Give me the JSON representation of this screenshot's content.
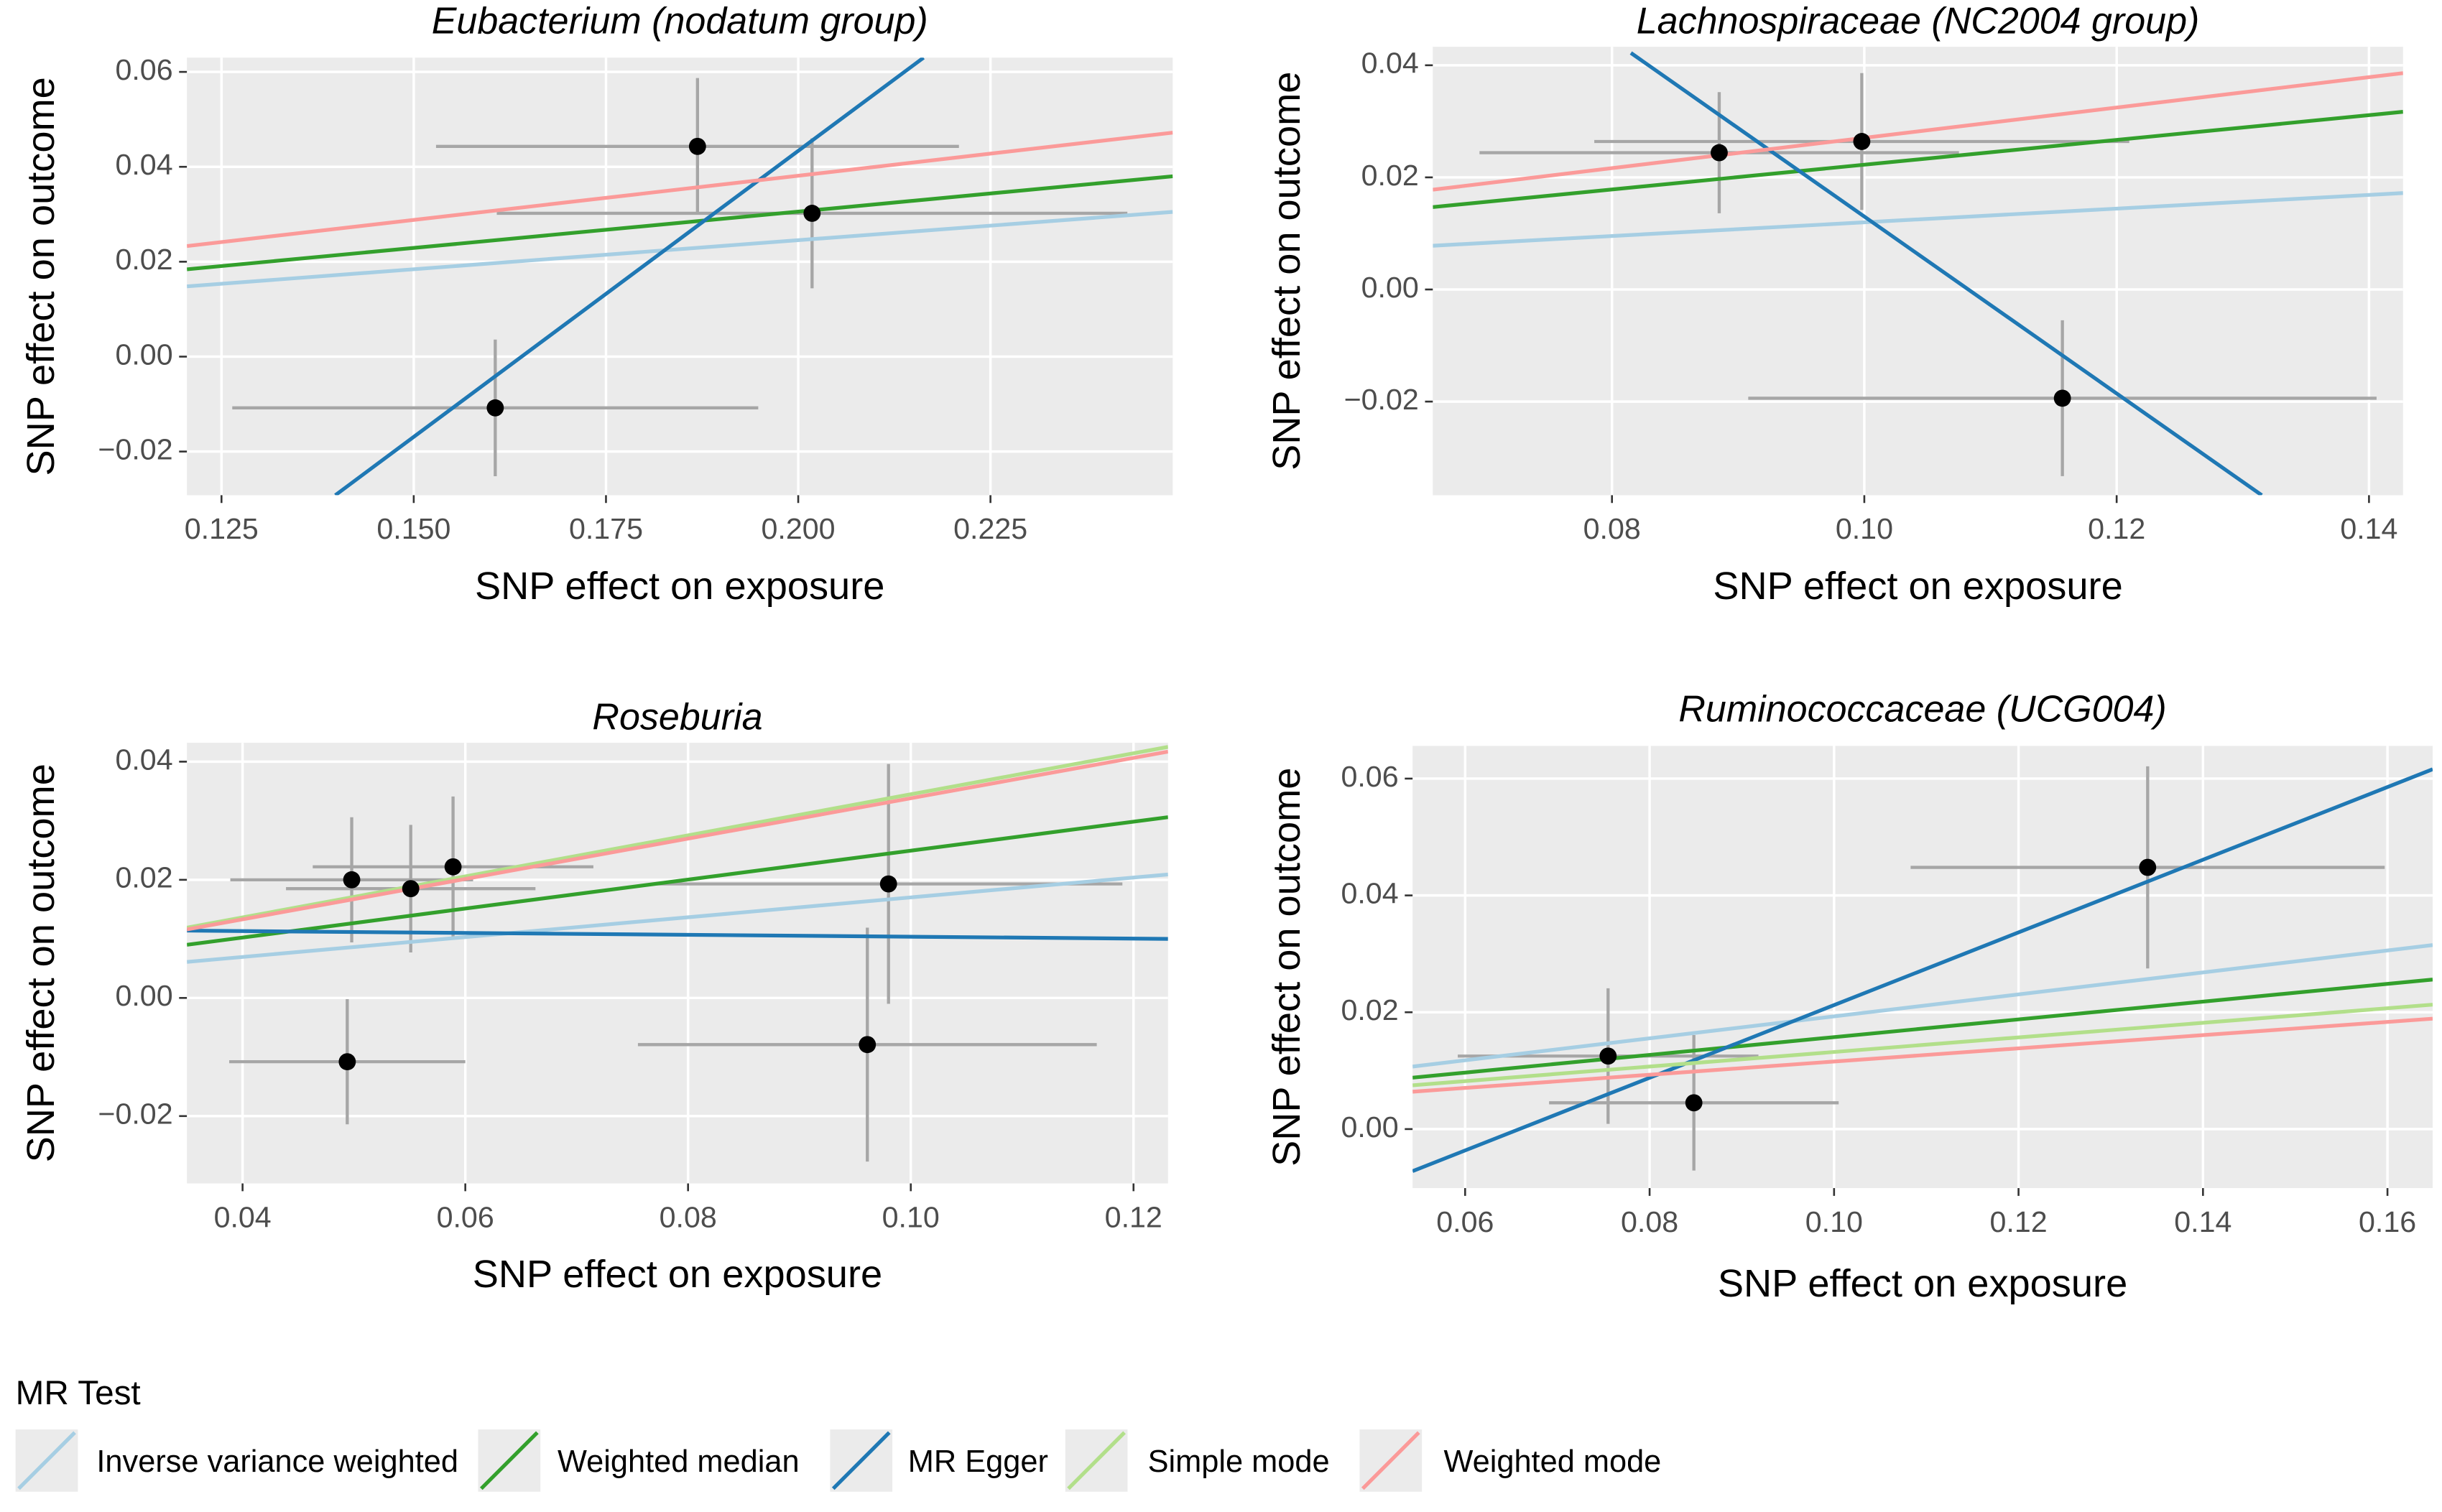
{
  "chart_data": [
    {
      "type": "scatter",
      "title": "Eubacterium (nodatum group)",
      "x_label": "SNP effect on exposure",
      "y_label": "SNP effect on outcome",
      "xlim": [
        0.1205,
        0.2487
      ],
      "ylim": [
        -0.0292,
        0.063
      ],
      "xticks": [
        0.125,
        {
          "value": 0.15,
          "label": "0.150"
        },
        0.175,
        {
          "value": 0.2,
          "label": "0.200"
        },
        0.225
      ],
      "yticks": [
        {
          "value": -0.02,
          "label": "−0.02"
        },
        {
          "value": 0,
          "label": "0.00"
        },
        0.02,
        0.04,
        0.06
      ],
      "points": {
        "x": [
          0.1606,
          0.1869,
          0.2018
        ],
        "y": [
          -0.0108,
          0.0443,
          0.0302
        ],
        "x_err": [
          0.0342,
          0.034,
          0.041
        ],
        "y_err": [
          0.0144,
          0.0144,
          0.0158
        ]
      },
      "lines": [
        {
          "name": "Inverse variance weighted",
          "color": "#a6cee3",
          "x": [
            0.1205,
            0.2487
          ],
          "values": [
            0.0148,
            0.0305
          ]
        },
        {
          "name": "Weighted median",
          "color": "#33a02c",
          "x": [
            0.1205,
            0.2487
          ],
          "values": [
            0.0184,
            0.038
          ]
        },
        {
          "name": "MR Egger",
          "color": "#1f78b4",
          "x": [
            0.1398,
            0.2163
          ],
          "values": [
            -0.0292,
            0.063
          ]
        },
        {
          "name": "Weighted mode",
          "color": "#fb9a99",
          "x": [
            0.1205,
            0.2487
          ],
          "values": [
            0.0233,
            0.0472
          ]
        }
      ]
    },
    {
      "type": "scatter",
      "title": "Lachnospiraceae (NC2004 group)",
      "x_label": "SNP effect on exposure",
      "y_label": "SNP effect on outcome",
      "xlim": [
        0.0658,
        0.1427
      ],
      "ylim": [
        -0.0367,
        0.0433
      ],
      "xticks": [
        0.08,
        {
          "value": 0.1,
          "label": "0.10"
        },
        0.12,
        0.14
      ],
      "yticks": [
        {
          "value": -0.02,
          "label": "−0.02"
        },
        {
          "value": 0,
          "label": "0.00"
        },
        0.02,
        0.04
      ],
      "points": {
        "x": [
          0.0885,
          0.0998,
          0.1157
        ],
        "y": [
          0.0244,
          0.0264,
          -0.0194
        ],
        "x_err": [
          0.019,
          0.0212,
          0.0249
        ],
        "y_err": [
          0.0108,
          0.0122,
          0.0139
        ]
      },
      "lines": [
        {
          "name": "Inverse variance weighted",
          "color": "#a6cee3",
          "x": [
            0.0658,
            0.1427
          ],
          "values": [
            0.0078,
            0.0172
          ]
        },
        {
          "name": "Weighted median",
          "color": "#33a02c",
          "x": [
            0.0658,
            0.1427
          ],
          "values": [
            0.0147,
            0.0317
          ]
        },
        {
          "name": "MR Egger",
          "color": "#1f78b4",
          "x": [
            0.0815,
            0.1315
          ],
          "values": [
            0.0422,
            -0.0367
          ]
        },
        {
          "name": "Weighted mode",
          "color": "#fb9a99",
          "x": [
            0.0658,
            0.1427
          ],
          "values": [
            0.0178,
            0.0386
          ]
        }
      ]
    },
    {
      "type": "scatter",
      "title": "Roseburia",
      "x_label": "SNP effect on exposure",
      "y_label": "SNP effect on outcome",
      "xlim": [
        0.035,
        0.1231
      ],
      "ylim": [
        -0.0314,
        0.0432
      ],
      "xticks": [
        0.04,
        0.06,
        0.08,
        {
          "value": 0.1,
          "label": "0.10"
        },
        0.12
      ],
      "yticks": [
        {
          "value": -0.02,
          "label": "−0.02"
        },
        {
          "value": 0,
          "label": "0.00"
        },
        0.02,
        0.04
      ],
      "points": {
        "x": [
          0.0498,
          0.0551,
          0.0589,
          0.0494,
          0.098,
          0.0961
        ],
        "y": [
          0.02,
          0.0185,
          0.0222,
          -0.0108,
          0.0193,
          -0.0079
        ],
        "x_err": [
          0.0109,
          0.0112,
          0.0126,
          0.0106,
          0.021,
          0.0206
        ],
        "y_err": [
          0.0106,
          0.0108,
          0.0119,
          0.0106,
          0.0203,
          0.0198
        ]
      },
      "lines": [
        {
          "name": "Inverse variance weighted",
          "color": "#a6cee3",
          "x": [
            0.035,
            0.1231
          ],
          "values": [
            0.0061,
            0.0209
          ]
        },
        {
          "name": "Weighted median",
          "color": "#33a02c",
          "x": [
            0.035,
            0.1231
          ],
          "values": [
            0.009,
            0.0306
          ]
        },
        {
          "name": "MR Egger",
          "color": "#1f78b4",
          "x": [
            0.035,
            0.1231
          ],
          "values": [
            0.0114,
            0.01
          ]
        },
        {
          "name": "Simple mode",
          "color": "#b2df8a",
          "x": [
            0.035,
            0.1231
          ],
          "values": [
            0.0119,
            0.0425
          ]
        },
        {
          "name": "Weighted mode",
          "color": "#fb9a99",
          "x": [
            0.035,
            0.1231
          ],
          "values": [
            0.0116,
            0.0417
          ]
        }
      ]
    },
    {
      "type": "scatter",
      "title": "Ruminococcaceae (UCG004)",
      "x_label": "SNP effect on exposure",
      "y_label": "SNP effect on outcome",
      "xlim": [
        0.0543,
        0.1649
      ],
      "ylim": [
        -0.0101,
        0.0656
      ],
      "xticks": [
        0.06,
        0.08,
        {
          "value": 0.1,
          "label": "0.10"
        },
        0.12,
        0.14,
        0.16
      ],
      "yticks": [
        {
          "value": 0,
          "label": "0.00"
        },
        0.02,
        0.04,
        0.06
      ],
      "points": {
        "x": [
          0.0755,
          0.0848,
          0.134
        ],
        "y": [
          0.0125,
          0.0045,
          0.0448
        ],
        "x_err": [
          0.0163,
          0.0157,
          0.0257
        ],
        "y_err": [
          0.0116,
          0.0116,
          0.0173
        ]
      },
      "lines": [
        {
          "name": "Inverse variance weighted",
          "color": "#a6cee3",
          "x": [
            0.0543,
            0.1649
          ],
          "values": [
            0.0107,
            0.0315
          ]
        },
        {
          "name": "Weighted median",
          "color": "#33a02c",
          "x": [
            0.0543,
            0.1649
          ],
          "values": [
            0.0088,
            0.0256
          ]
        },
        {
          "name": "MR Egger",
          "color": "#1f78b4",
          "x": [
            0.0543,
            0.1649
          ],
          "values": [
            -0.0072,
            0.0616
          ]
        },
        {
          "name": "Simple mode",
          "color": "#b2df8a",
          "x": [
            0.0543,
            0.1649
          ],
          "values": [
            0.0075,
            0.0213
          ]
        },
        {
          "name": "Weighted mode",
          "color": "#fb9a99",
          "x": [
            0.0543,
            0.1649
          ],
          "values": [
            0.0064,
            0.0189
          ]
        }
      ]
    }
  ],
  "legend": {
    "title": "MR Test",
    "names": [
      "Inverse variance weighted",
      "Weighted median",
      "MR Egger",
      "Simple mode",
      "Weighted mode"
    ],
    "colors": [
      "#a6cee3",
      "#33a02c",
      "#1f78b4",
      "#b2df8a",
      "#fb9a99"
    ]
  }
}
